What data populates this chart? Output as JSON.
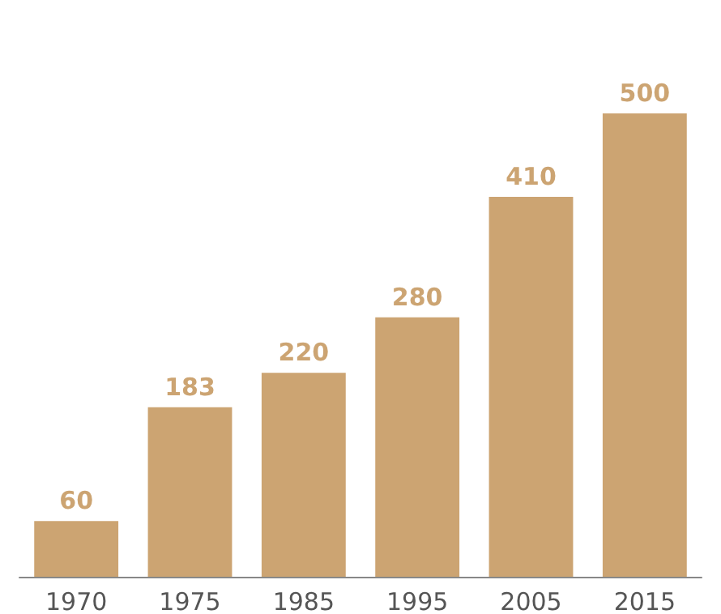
{
  "chart_data": {
    "type": "bar",
    "categories": [
      "1970",
      "1975",
      "1985",
      "1995",
      "2005",
      "2015"
    ],
    "values": [
      60,
      183,
      220,
      280,
      410,
      500
    ],
    "color": "#cca472",
    "data_labels": true
  }
}
